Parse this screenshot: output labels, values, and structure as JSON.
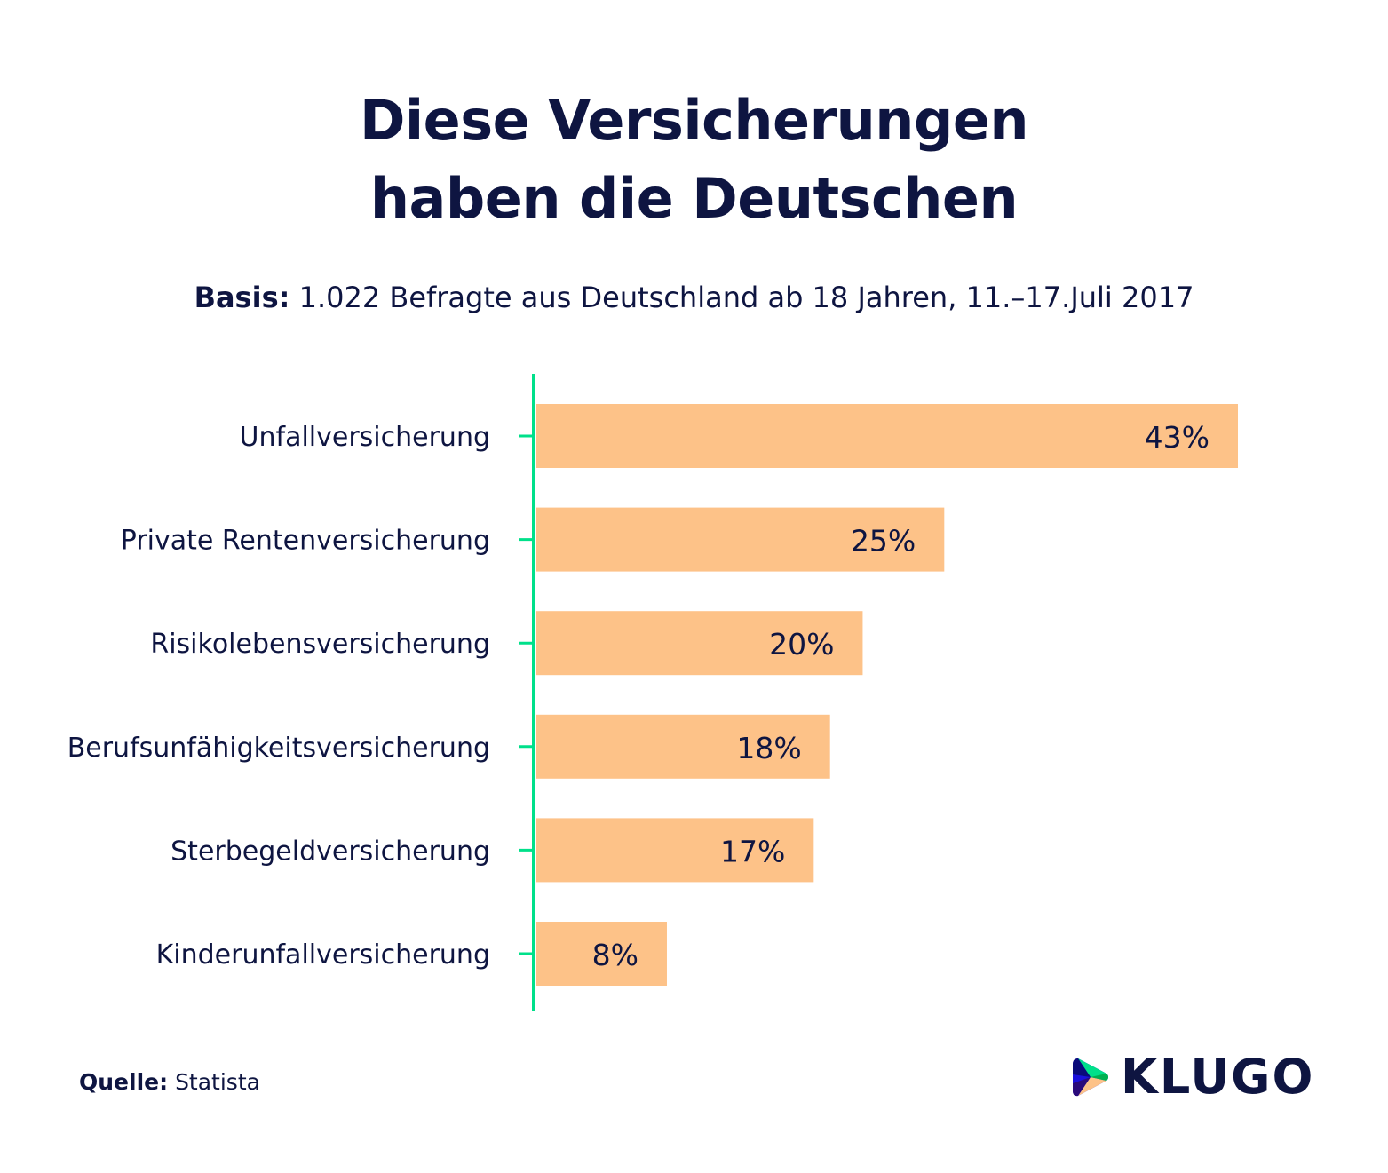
{
  "title_line1": "Diese Versicherungen",
  "title_line2": "haben die Deutschen",
  "subtitle_label": "Basis:",
  "subtitle_text": "1.022 Befragte aus Deutschland ab 18 Jahren, 11.–17.Juli 2017",
  "source_label": "Quelle:",
  "source_text": "Statista",
  "logo": "KLUGO",
  "colors": {
    "bar": "#fdc288",
    "axis": "#00e08a",
    "text": "#0e1541"
  },
  "chart_data": {
    "type": "bar",
    "orientation": "horizontal",
    "categories": [
      "Unfallversicherung",
      "Private Rentenversicherung",
      "Risikolebensversicherung",
      "Berufsunfähigkeitsversicherung",
      "Sterbegeldversicherung",
      "Kinderunfallversicherung"
    ],
    "values": [
      43,
      25,
      20,
      18,
      17,
      8
    ],
    "data_labels": [
      "43%",
      "25%",
      "20%",
      "18%",
      "17%",
      "8%"
    ],
    "unit": "%",
    "xlim": [
      0,
      43
    ],
    "grid": false
  }
}
